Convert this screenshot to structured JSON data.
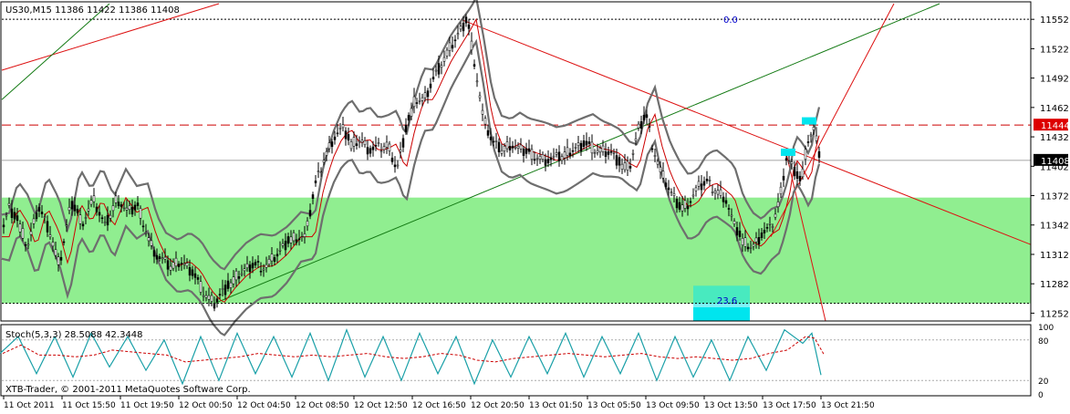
{
  "chart": {
    "symbol_header": "US30,M15  11386 11422 11386 11408",
    "copyright": "XTB-Trader, © 2001-2011 MetaQuotes Software Corp.",
    "indicator_label": "Stoch(5,3,3) 28.5088 42.3448",
    "current_price_label": "11408",
    "level_label": "11444",
    "fib_top_label": "0.0",
    "fib_bottom_label": "23.6",
    "colors": {
      "candle": "#000000",
      "band": "#6e6e6e",
      "ma": "#cc0000",
      "zone_fill": "#90ee90",
      "highlight": "#00e5ee",
      "trend_red": "#dd1111",
      "trend_green": "#137a13",
      "fib_text": "#0000cc",
      "stoch_main": "#1aa0a8",
      "stoch_signal": "#cc0000"
    }
  },
  "chart_data": {
    "type": "candlestick",
    "price_axis": {
      "ticks": [
        "11552",
        "11522",
        "11492",
        "11462",
        "11432",
        "11402",
        "11372",
        "11342",
        "11312",
        "11282",
        "11252"
      ],
      "range": [
        11244,
        11568
      ]
    },
    "stoch_axis": {
      "ticks": [
        "100",
        "80",
        "20",
        "0"
      ],
      "range": [
        0,
        100
      ]
    },
    "time_axis": {
      "labels": [
        "11 Oct 2011",
        "11 Oct 15:50",
        "11 Oct 19:50",
        "12 Oct 00:50",
        "12 Oct 04:50",
        "12 Oct 08:50",
        "12 Oct 12:50",
        "12 Oct 16:50",
        "12 Oct 20:50",
        "13 Oct 01:50",
        "13 Oct 05:50",
        "13 Oct 09:50",
        "13 Oct 13:50",
        "13 Oct 17:50",
        "13 Oct 21:50"
      ]
    },
    "levels": {
      "current": 11408,
      "resistance": 11444,
      "fib_0": 11552,
      "fib_23_6": 11262,
      "zone_top": 11370,
      "zone_bottom": 11262
    },
    "price_path": [
      [
        0,
        11330
      ],
      [
        10,
        11360
      ],
      [
        20,
        11345
      ],
      [
        30,
        11320
      ],
      [
        42,
        11360
      ],
      [
        55,
        11335
      ],
      [
        65,
        11300
      ],
      [
        78,
        11365
      ],
      [
        90,
        11345
      ],
      [
        102,
        11368
      ],
      [
        115,
        11340
      ],
      [
        128,
        11370
      ],
      [
        140,
        11355
      ],
      [
        152,
        11360
      ],
      [
        162,
        11330
      ],
      [
        172,
        11310
      ],
      [
        185,
        11300
      ],
      [
        198,
        11305
      ],
      [
        210,
        11295
      ],
      [
        222,
        11275
      ],
      [
        235,
        11262
      ],
      [
        248,
        11278
      ],
      [
        260,
        11290
      ],
      [
        275,
        11300
      ],
      [
        290,
        11300
      ],
      [
        305,
        11312
      ],
      [
        320,
        11330
      ],
      [
        335,
        11330
      ],
      [
        345,
        11380
      ],
      [
        355,
        11410
      ],
      [
        365,
        11430
      ],
      [
        375,
        11440
      ],
      [
        385,
        11425
      ],
      [
        395,
        11430
      ],
      [
        405,
        11418
      ],
      [
        415,
        11420
      ],
      [
        425,
        11425
      ],
      [
        435,
        11398
      ],
      [
        445,
        11440
      ],
      [
        455,
        11470
      ],
      [
        465,
        11470
      ],
      [
        475,
        11490
      ],
      [
        485,
        11510
      ],
      [
        495,
        11525
      ],
      [
        505,
        11540
      ],
      [
        512,
        11552
      ],
      [
        520,
        11510
      ],
      [
        530,
        11450
      ],
      [
        540,
        11425
      ],
      [
        550,
        11420
      ],
      [
        560,
        11425
      ],
      [
        570,
        11418
      ],
      [
        580,
        11415
      ],
      [
        590,
        11412
      ],
      [
        600,
        11408
      ],
      [
        610,
        11410
      ],
      [
        620,
        11415
      ],
      [
        630,
        11420
      ],
      [
        640,
        11425
      ],
      [
        650,
        11420
      ],
      [
        660,
        11418
      ],
      [
        670,
        11415
      ],
      [
        680,
        11405
      ],
      [
        690,
        11400
      ],
      [
        700,
        11440
      ],
      [
        708,
        11455
      ],
      [
        715,
        11425
      ],
      [
        725,
        11395
      ],
      [
        735,
        11375
      ],
      [
        745,
        11360
      ],
      [
        755,
        11365
      ],
      [
        765,
        11380
      ],
      [
        775,
        11385
      ],
      [
        785,
        11378
      ],
      [
        795,
        11370
      ],
      [
        805,
        11340
      ],
      [
        815,
        11325
      ],
      [
        825,
        11320
      ],
      [
        835,
        11332
      ],
      [
        845,
        11338
      ],
      [
        855,
        11370
      ],
      [
        862,
        11410
      ],
      [
        870,
        11400
      ],
      [
        878,
        11385
      ],
      [
        886,
        11430
      ],
      [
        892,
        11440
      ],
      [
        900,
        11408
      ]
    ],
    "stoch_path": [
      [
        0,
        60
      ],
      [
        20,
        85
      ],
      [
        40,
        30
      ],
      [
        60,
        85
      ],
      [
        80,
        25
      ],
      [
        100,
        90
      ],
      [
        120,
        40
      ],
      [
        140,
        85
      ],
      [
        160,
        35
      ],
      [
        180,
        80
      ],
      [
        200,
        15
      ],
      [
        220,
        85
      ],
      [
        240,
        20
      ],
      [
        260,
        90
      ],
      [
        280,
        30
      ],
      [
        300,
        85
      ],
      [
        320,
        25
      ],
      [
        340,
        90
      ],
      [
        360,
        20
      ],
      [
        380,
        95
      ],
      [
        400,
        25
      ],
      [
        420,
        85
      ],
      [
        440,
        20
      ],
      [
        460,
        90
      ],
      [
        480,
        30
      ],
      [
        500,
        85
      ],
      [
        520,
        15
      ],
      [
        540,
        80
      ],
      [
        560,
        25
      ],
      [
        580,
        85
      ],
      [
        600,
        30
      ],
      [
        620,
        90
      ],
      [
        640,
        25
      ],
      [
        660,
        85
      ],
      [
        680,
        30
      ],
      [
        700,
        90
      ],
      [
        720,
        20
      ],
      [
        740,
        85
      ],
      [
        760,
        25
      ],
      [
        780,
        80
      ],
      [
        800,
        20
      ],
      [
        820,
        85
      ],
      [
        840,
        35
      ],
      [
        860,
        95
      ],
      [
        880,
        75
      ],
      [
        890,
        90
      ],
      [
        900,
        28
      ]
    ]
  }
}
